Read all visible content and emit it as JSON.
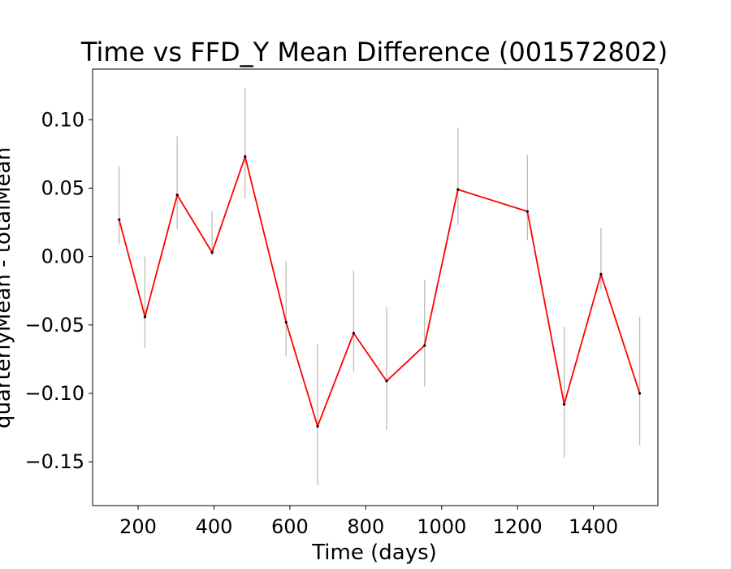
{
  "chart_data": {
    "type": "line",
    "title": "Time vs FFD_Y Mean Difference (001572802)",
    "xlabel": "Time (days)",
    "ylabel": "quarterlyMean - totalMean",
    "xlim": [
      80,
      1570
    ],
    "ylim": [
      -0.182,
      0.137
    ],
    "xticks": [
      200,
      400,
      600,
      800,
      1000,
      1200,
      1400
    ],
    "xtick_labels": [
      "200",
      "400",
      "600",
      "800",
      "1000",
      "1200",
      "1400"
    ],
    "yticks": [
      0.1,
      0.05,
      0.0,
      -0.05,
      -0.1,
      -0.15
    ],
    "ytick_labels": [
      "0.10",
      "0.05",
      "0.00",
      "−0.05",
      "−0.10",
      "−0.15"
    ],
    "grid": false,
    "series": [
      {
        "color": "#ff0000",
        "errorbar_color": "#bbbbbb",
        "points": [
          {
            "x": 150,
            "y": 0.027,
            "lo": 0.009,
            "hi": 0.066
          },
          {
            "x": 218,
            "y": -0.044,
            "lo": -0.067,
            "hi": 0.0
          },
          {
            "x": 303,
            "y": 0.045,
            "lo": 0.02,
            "hi": 0.088
          },
          {
            "x": 395,
            "y": 0.003,
            "lo": 0.001,
            "hi": 0.033
          },
          {
            "x": 482,
            "y": 0.073,
            "lo": 0.042,
            "hi": 0.123
          },
          {
            "x": 590,
            "y": -0.048,
            "lo": -0.073,
            "hi": -0.003
          },
          {
            "x": 673,
            "y": -0.124,
            "lo": -0.167,
            "hi": -0.064
          },
          {
            "x": 768,
            "y": -0.056,
            "lo": -0.084,
            "hi": -0.01
          },
          {
            "x": 855,
            "y": -0.091,
            "lo": -0.127,
            "hi": -0.037
          },
          {
            "x": 955,
            "y": -0.065,
            "lo": -0.095,
            "hi": -0.017
          },
          {
            "x": 1043,
            "y": 0.049,
            "lo": 0.023,
            "hi": 0.094
          },
          {
            "x": 1226,
            "y": 0.033,
            "lo": 0.012,
            "hi": 0.074
          },
          {
            "x": 1323,
            "y": -0.108,
            "lo": -0.147,
            "hi": -0.051
          },
          {
            "x": 1420,
            "y": -0.013,
            "lo": -0.024,
            "hi": 0.021
          },
          {
            "x": 1522,
            "y": -0.1,
            "lo": -0.138,
            "hi": -0.044
          }
        ]
      }
    ]
  }
}
